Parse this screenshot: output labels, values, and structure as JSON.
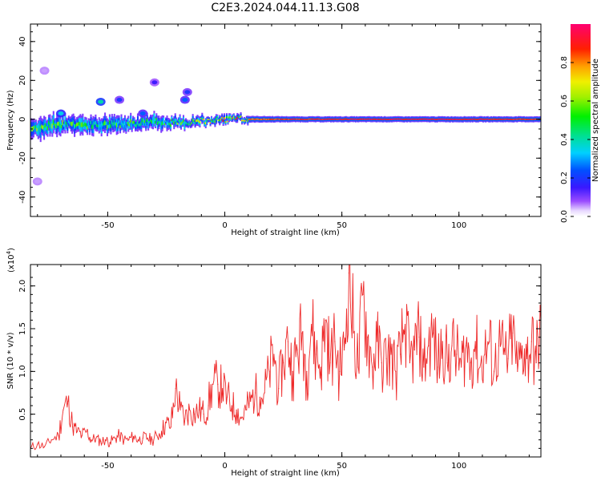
{
  "title": "C2E3.2024.044.11.13.G08",
  "top_panel": {
    "xlabel": "Height of straight line (km)",
    "ylabel": "Frequency (Hz)",
    "colorbar_label": "Normalized spectral amplitude",
    "x_ticks": [
      "-50",
      "0",
      "50",
      "100"
    ],
    "y_ticks": [
      "-40",
      "-20",
      "0",
      "20",
      "40"
    ],
    "colorbar_ticks": [
      "0.0",
      "0.2",
      "0.4",
      "0.6",
      "0.8"
    ]
  },
  "bottom_panel": {
    "xlabel": "Height of straight line (km)",
    "ylabel": "SNR (10 * v/v)",
    "scale_label_base": "(x10",
    "scale_label_exp": "4",
    "scale_label_close": ")",
    "x_ticks": [
      "-50",
      "0",
      "50",
      "100"
    ],
    "y_ticks": [
      "0.5",
      "1.0",
      "1.5",
      "2.0"
    ]
  },
  "chart_data": [
    {
      "type": "heatmap",
      "title": "C2E3.2024.044.11.13.G08",
      "xlabel": "Height of straight line (km)",
      "ylabel": "Frequency (Hz)",
      "xlim": [
        -83,
        135
      ],
      "ylim": [
        -50,
        49
      ],
      "x_ticks": [
        -50,
        0,
        50,
        100
      ],
      "y_ticks": [
        -40,
        -20,
        0,
        20,
        40
      ],
      "colorbar": {
        "label": "Normalized spectral amplitude",
        "range": [
          0,
          1
        ],
        "ticks": [
          0.0,
          0.2,
          0.4,
          0.6,
          0.8
        ],
        "colormap": "rainbow"
      },
      "main_band": [
        {
          "x": -83,
          "freq": -5,
          "halfwidth": 3.2,
          "amp": 0.55
        },
        {
          "x": -75,
          "freq": -3,
          "halfwidth": 2.8,
          "amp": 0.55
        },
        {
          "x": -68,
          "freq": -2,
          "halfwidth": 2.6,
          "amp": 0.55
        },
        {
          "x": -60,
          "freq": -3,
          "halfwidth": 2.5,
          "amp": 0.5
        },
        {
          "x": -50,
          "freq": -3,
          "halfwidth": 2.4,
          "amp": 0.5
        },
        {
          "x": -40,
          "freq": -2,
          "halfwidth": 2.2,
          "amp": 0.5
        },
        {
          "x": -30,
          "freq": -1,
          "halfwidth": 2.0,
          "amp": 0.5
        },
        {
          "x": -20,
          "freq": -2,
          "halfwidth": 1.6,
          "amp": 0.55
        },
        {
          "x": -10,
          "freq": -1,
          "halfwidth": 1.3,
          "amp": 0.65
        },
        {
          "x": 0,
          "freq": 0,
          "halfwidth": 1.2,
          "amp": 0.75
        },
        {
          "x": 15,
          "freq": 0,
          "halfwidth": 1.1,
          "amp": 0.85
        },
        {
          "x": 30,
          "freq": 0,
          "halfwidth": 1.0,
          "amp": 0.9
        },
        {
          "x": 60,
          "freq": 0,
          "halfwidth": 1.0,
          "amp": 0.95
        },
        {
          "x": 100,
          "freq": 0,
          "halfwidth": 1.0,
          "amp": 0.95
        },
        {
          "x": 135,
          "freq": 0,
          "halfwidth": 1.0,
          "amp": 0.9
        }
      ],
      "upper_features": [
        {
          "x": -53,
          "freq": 9,
          "amp": 0.4
        },
        {
          "x": -45,
          "freq": 10,
          "amp": 0.2
        },
        {
          "x": -30,
          "freq": 19,
          "amp": 0.15
        },
        {
          "x": -17,
          "freq": 10,
          "amp": 0.25
        },
        {
          "x": -16,
          "freq": 14,
          "amp": 0.2
        },
        {
          "x": -70,
          "freq": 3,
          "amp": 0.35
        },
        {
          "x": -35,
          "freq": 3,
          "amp": 0.25
        },
        {
          "x": -77,
          "freq": 25,
          "amp": 0.05
        },
        {
          "x": -80,
          "freq": -32,
          "amp": 0.05
        }
      ]
    },
    {
      "type": "line",
      "xlabel": "Height of straight line (km)",
      "ylabel": "SNR (10 * v/v)",
      "y_scale": "x10^4",
      "xlim": [
        -83,
        135
      ],
      "ylim": [
        0.0,
        2.25
      ],
      "x_ticks": [
        -50,
        0,
        50,
        100
      ],
      "y_ticks": [
        0.5,
        1.0,
        1.5,
        2.0
      ],
      "color": "#ee2a2a",
      "series": [
        {
          "x": [
            -83,
            -80,
            -77,
            -74,
            -71,
            -69,
            -67,
            -65,
            -63,
            -61,
            -59,
            -57,
            -55,
            -53,
            -51,
            -49,
            -47,
            -45,
            -43,
            -41,
            -39,
            -37,
            -35,
            -33,
            -31,
            -29,
            -27,
            -25,
            -23,
            -21,
            -19,
            -17,
            -15,
            -13,
            -11,
            -9,
            -7,
            -5,
            -3,
            -1,
            1,
            3,
            5,
            7,
            9,
            11,
            13,
            15,
            17,
            19,
            21,
            23,
            25,
            27,
            29,
            31,
            33,
            35,
            37,
            39,
            41,
            43,
            45,
            47,
            49,
            51,
            53,
            55,
            57,
            59,
            61,
            63,
            65,
            67,
            69,
            71,
            73,
            75,
            77,
            79,
            81,
            83,
            85,
            87,
            89,
            91,
            93,
            95,
            97,
            99,
            101,
            103,
            105,
            107,
            109,
            111,
            113,
            115,
            117,
            119,
            121,
            123,
            125,
            127,
            129,
            131,
            133,
            135
          ],
          "values": [
            0.1,
            0.15,
            0.12,
            0.2,
            0.25,
            0.55,
            0.65,
            0.35,
            0.3,
            0.25,
            0.3,
            0.2,
            0.22,
            0.18,
            0.2,
            0.17,
            0.22,
            0.25,
            0.2,
            0.2,
            0.24,
            0.2,
            0.22,
            0.22,
            0.2,
            0.25,
            0.3,
            0.4,
            0.35,
            0.8,
            0.55,
            0.45,
            0.55,
            0.5,
            0.55,
            0.5,
            0.6,
            0.85,
            0.85,
            0.8,
            0.7,
            0.6,
            0.55,
            0.45,
            0.55,
            0.65,
            0.75,
            0.7,
            0.75,
            1.0,
            1.2,
            0.8,
            1.1,
            1.35,
            1.0,
            1.25,
            1.45,
            1.0,
            1.55,
            1.2,
            1.05,
            1.6,
            1.1,
            1.35,
            1.0,
            1.25,
            2.15,
            1.45,
            1.05,
            1.9,
            1.4,
            1.05,
            1.35,
            1.1,
            1.15,
            1.2,
            1.0,
            1.2,
            1.55,
            1.1,
            1.25,
            1.4,
            1.05,
            1.3,
            1.45,
            1.05,
            1.35,
            1.1,
            1.3,
            1.2,
            1.05,
            1.3,
            1.1,
            1.35,
            1.05,
            1.2,
            1.35,
            1.0,
            1.3,
            1.2,
            1.15,
            1.45,
            1.0,
            1.3,
            1.15,
            1.35,
            1.1,
            1.6
          ]
        }
      ]
    }
  ]
}
